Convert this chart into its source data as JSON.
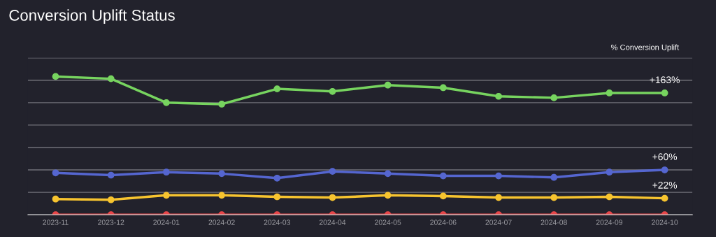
{
  "chart_data": {
    "type": "line",
    "title": "Conversion Uplift Status",
    "ylabel": "% Conversion Uplift",
    "categories": [
      "2023-11",
      "2023-12",
      "2024-01",
      "2024-02",
      "2024-03",
      "2024-04",
      "2024-05",
      "2024-06",
      "2024-07",
      "2024-08",
      "2024-09",
      "2024-10"
    ],
    "series": [
      {
        "color": "#77d45f",
        "values": [
          185,
          182,
          150,
          148,
          168.5,
          165,
          173.5,
          170,
          158.5,
          156.5,
          163,
          163
        ],
        "value_labels": [
          null,
          null,
          null,
          null,
          null,
          null,
          null,
          null,
          null,
          null,
          null,
          "+163%"
        ]
      },
      {
        "color": "#5566d0",
        "values": [
          56,
          53,
          57,
          55,
          49,
          58,
          55,
          52,
          52,
          50,
          57,
          60
        ],
        "value_labels": [
          null,
          null,
          null,
          null,
          null,
          null,
          null,
          null,
          null,
          null,
          null,
          "+60%"
        ]
      },
      {
        "color": "#f7c42f",
        "values": [
          21,
          20,
          26,
          26,
          24,
          23,
          26,
          25,
          23,
          23,
          24,
          22
        ],
        "value_labels": [
          null,
          null,
          null,
          null,
          null,
          null,
          null,
          null,
          null,
          null,
          null,
          "+22%"
        ]
      },
      {
        "color": "#e8474a",
        "values": [
          0,
          0,
          0,
          0,
          0,
          0,
          0,
          0,
          0,
          0,
          0,
          0
        ]
      }
    ],
    "ylim": [
      0,
      210
    ],
    "yticks": [
      {
        "value": 0,
        "label": null
      },
      {
        "value": 30,
        "label": null
      },
      {
        "value": 60,
        "label": null
      },
      {
        "value": 90,
        "label": null
      },
      {
        "value": 120,
        "label": null
      },
      {
        "value": 150,
        "label": null
      },
      {
        "value": 180,
        "label": null
      },
      {
        "value": 210,
        "label": null
      }
    ],
    "tick_labels": "x",
    "grid": "y",
    "marker": "circle",
    "line_style": "solid",
    "legend": false
  }
}
